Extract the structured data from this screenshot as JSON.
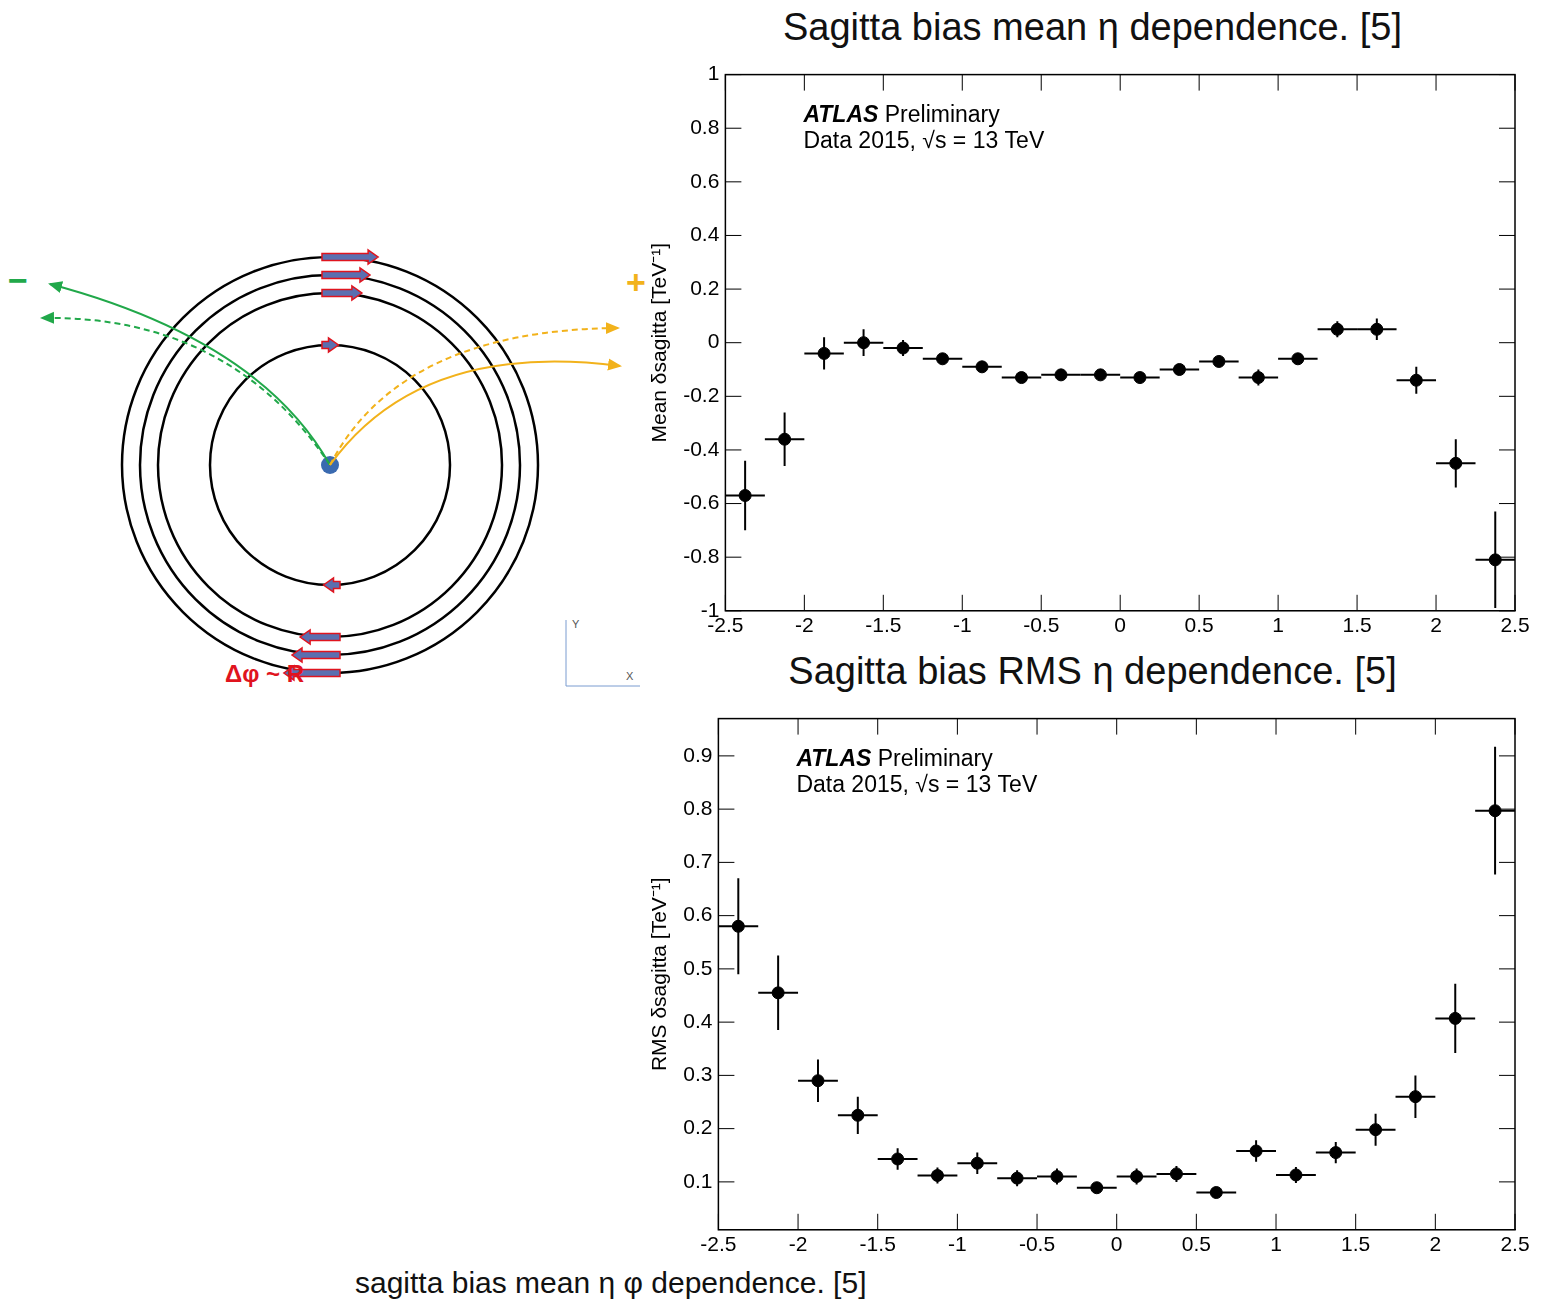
{
  "diagram": {
    "minus_label": "−",
    "plus_label": "+",
    "caption": "Δφ ~ R",
    "axis_labels": {
      "x": "X",
      "y": "Y"
    }
  },
  "chart_data": [
    {
      "type": "scatter",
      "title": "Sagitta bias mean η dependence. [5]",
      "y_label": "Mean δsagitta [TeV⁻¹]",
      "annotations": [
        "ATLAS Preliminary",
        "Data 2015, √s = 13 TeV"
      ],
      "x": [
        -2.375,
        -2.125,
        -1.875,
        -1.625,
        -1.375,
        -1.125,
        -0.875,
        -0.625,
        -0.375,
        -0.125,
        0.125,
        0.375,
        0.625,
        0.875,
        1.125,
        1.375,
        1.625,
        1.875,
        2.125,
        2.375
      ],
      "values": [
        -0.57,
        -0.36,
        -0.04,
        0.0,
        -0.02,
        -0.06,
        -0.09,
        -0.13,
        -0.12,
        -0.12,
        -0.13,
        -0.1,
        -0.07,
        -0.13,
        -0.06,
        0.05,
        0.05,
        -0.14,
        -0.45,
        -0.81
      ],
      "y_errors": [
        0.13,
        0.1,
        0.06,
        0.05,
        0.03,
        0.02,
        0.02,
        0.02,
        0.02,
        0.02,
        0.02,
        0.02,
        0.02,
        0.03,
        0.02,
        0.03,
        0.04,
        0.05,
        0.09,
        0.18
      ],
      "x_errors": [
        0.125,
        0.125,
        0.125,
        0.125,
        0.125,
        0.125,
        0.125,
        0.125,
        0.125,
        0.125,
        0.125,
        0.125,
        0.125,
        0.125,
        0.125,
        0.125,
        0.125,
        0.125,
        0.125,
        0.125
      ],
      "xlim": [
        -2.5,
        2.5
      ],
      "xticks": [
        -2.5,
        -2,
        -1.5,
        -1,
        -0.5,
        0,
        0.5,
        1,
        1.5,
        2,
        2.5
      ],
      "ylim": [
        -1,
        1
      ],
      "yticks": [
        -1,
        -0.8,
        -0.6,
        -0.4,
        -0.2,
        0,
        0.2,
        0.4,
        0.6,
        0.8,
        1
      ],
      "color": "#000000",
      "marker": "circle",
      "grid": false
    },
    {
      "type": "scatter",
      "title": "Sagitta bias RMS η dependence. [5]",
      "y_label": "RMS δsagitta [TeV⁻¹]",
      "annotations": [
        "ATLAS Preliminary",
        "Data 2015, √s = 13 TeV"
      ],
      "x": [
        -2.375,
        -2.125,
        -1.875,
        -1.625,
        -1.375,
        -1.125,
        -0.875,
        -0.625,
        -0.375,
        -0.125,
        0.125,
        0.375,
        0.625,
        0.875,
        1.125,
        1.375,
        1.625,
        1.875,
        2.125,
        2.375
      ],
      "values": [
        0.58,
        0.455,
        0.29,
        0.225,
        0.143,
        0.112,
        0.135,
        0.107,
        0.11,
        0.089,
        0.11,
        0.115,
        0.08,
        0.158,
        0.113,
        0.155,
        0.198,
        0.26,
        0.407,
        0.797
      ],
      "y_errors": [
        0.09,
        0.07,
        0.04,
        0.035,
        0.02,
        0.015,
        0.02,
        0.015,
        0.015,
        0.01,
        0.015,
        0.015,
        0.01,
        0.02,
        0.015,
        0.02,
        0.03,
        0.04,
        0.065,
        0.12
      ],
      "x_errors": [
        0.125,
        0.125,
        0.125,
        0.125,
        0.125,
        0.125,
        0.125,
        0.125,
        0.125,
        0.125,
        0.125,
        0.125,
        0.125,
        0.125,
        0.125,
        0.125,
        0.125,
        0.125,
        0.125,
        0.125
      ],
      "xlim": [
        -2.5,
        2.5
      ],
      "xticks": [
        -2.5,
        -2,
        -1.5,
        -1,
        -0.5,
        0,
        0.5,
        1,
        1.5,
        2,
        2.5
      ],
      "ylim": [
        0.01,
        0.97
      ],
      "yticks": [
        0.1,
        0.2,
        0.3,
        0.4,
        0.5,
        0.6,
        0.7,
        0.8,
        0.9
      ],
      "color": "#000000",
      "marker": "circle",
      "grid": false
    }
  ],
  "footer": "sagitta bias mean η φ dependence. [5]"
}
